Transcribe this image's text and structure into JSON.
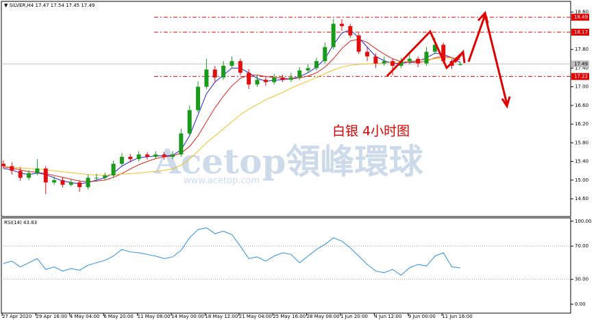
{
  "chart_data": [
    {
      "type": "candlestick",
      "title": "SILVER,H4",
      "x": [
        "27 Apr 2020",
        null,
        null,
        null,
        "29 Apr 16:00",
        null,
        null,
        null,
        "4 May 04:00",
        null,
        null,
        null,
        "6 May 20:00",
        null,
        null,
        null,
        "11 May 08:00",
        null,
        null,
        null,
        "14 May 00:00",
        null,
        null,
        null,
        "18 May 12:00",
        null,
        null,
        null,
        "21 May 04:00",
        null,
        null,
        null,
        "25 May 16:00",
        null,
        null,
        null,
        "28 May 08:00",
        null,
        null,
        null,
        "1 Jun 20:00",
        null,
        null,
        null,
        "4 Jun 12:00",
        null,
        null,
        null,
        "9 Jun 00:00",
        null,
        null,
        null,
        "11 Jun 16:00",
        null,
        null
      ],
      "open": [
        15.35,
        15.3,
        15.2,
        15.05,
        15.15,
        15.25,
        14.95,
        15.0,
        14.9,
        14.95,
        14.85,
        15.05,
        15.05,
        15.1,
        15.35,
        15.5,
        15.45,
        15.55,
        15.5,
        15.55,
        15.5,
        15.55,
        16.0,
        16.5,
        17.0,
        17.37,
        17.2,
        17.45,
        17.55,
        17.3,
        17.05,
        17.15,
        17.1,
        17.2,
        17.15,
        17.2,
        17.35,
        17.4,
        17.55,
        17.85,
        18.35,
        18.3,
        18.1,
        17.75,
        17.65,
        17.5,
        17.55,
        17.45,
        17.55,
        17.6,
        17.5,
        17.75,
        17.9,
        17.55,
        17.47
      ],
      "high": [
        15.42,
        15.38,
        15.28,
        15.22,
        15.45,
        15.3,
        15.08,
        15.06,
        15.02,
        15.0,
        15.12,
        15.14,
        15.16,
        15.42,
        15.58,
        15.56,
        15.62,
        15.6,
        15.62,
        15.6,
        15.62,
        16.1,
        16.6,
        17.12,
        17.6,
        17.45,
        17.55,
        17.65,
        17.6,
        17.38,
        17.25,
        17.22,
        17.28,
        17.26,
        17.3,
        17.42,
        17.48,
        17.62,
        17.95,
        18.45,
        18.45,
        18.35,
        18.15,
        17.85,
        17.72,
        17.65,
        17.6,
        17.62,
        17.72,
        17.65,
        17.85,
        18.05,
        17.95,
        17.6,
        17.54
      ],
      "low": [
        15.25,
        15.12,
        14.98,
        15.0,
        15.1,
        14.7,
        14.9,
        14.84,
        14.86,
        14.75,
        14.8,
        14.98,
        15.0,
        15.05,
        15.3,
        15.38,
        15.4,
        15.44,
        15.45,
        15.44,
        15.45,
        15.5,
        15.95,
        16.45,
        16.95,
        17.1,
        17.15,
        17.4,
        17.25,
        16.95,
        17.0,
        17.02,
        17.05,
        17.1,
        17.1,
        17.15,
        17.3,
        17.35,
        17.5,
        17.8,
        18.2,
        18.05,
        17.7,
        17.55,
        17.4,
        17.45,
        17.25,
        17.4,
        17.48,
        17.42,
        17.45,
        17.7,
        17.5,
        17.38,
        17.45
      ],
      "close": [
        15.3,
        15.2,
        15.05,
        15.15,
        15.25,
        14.95,
        15.0,
        14.9,
        14.95,
        14.85,
        15.05,
        15.05,
        15.1,
        15.35,
        15.5,
        15.45,
        15.55,
        15.5,
        15.55,
        15.5,
        15.55,
        16.0,
        16.5,
        17.0,
        17.37,
        17.2,
        17.45,
        17.55,
        17.3,
        17.05,
        17.15,
        17.1,
        17.2,
        17.15,
        17.2,
        17.35,
        17.4,
        17.55,
        17.85,
        18.35,
        18.3,
        18.1,
        17.75,
        17.65,
        17.5,
        17.55,
        17.45,
        17.55,
        17.6,
        17.5,
        17.75,
        17.9,
        17.55,
        17.45,
        17.49
      ],
      "up_color": "#1a9a1a",
      "down_color": "#e01010",
      "series": [
        {
          "color": "#2020e0",
          "values": [
            15.25,
            15.22,
            15.15,
            15.12,
            15.15,
            15.12,
            15.05,
            14.98,
            14.95,
            14.92,
            14.95,
            15.0,
            15.05,
            15.15,
            15.3,
            15.4,
            15.48,
            15.5,
            15.52,
            15.52,
            15.53,
            15.65,
            15.95,
            16.4,
            16.85,
            17.1,
            17.25,
            17.4,
            17.4,
            17.3,
            17.18,
            17.12,
            17.14,
            17.15,
            17.17,
            17.22,
            17.3,
            17.42,
            17.6,
            17.9,
            18.15,
            18.22,
            18.05,
            17.85,
            17.65,
            17.56,
            17.5,
            17.5,
            17.53,
            17.55,
            17.62,
            17.72,
            17.7,
            17.62,
            17.52
          ]
        },
        {
          "color": "#e02020",
          "values": [
            15.28,
            15.26,
            15.22,
            15.18,
            15.17,
            15.14,
            15.1,
            15.06,
            15.02,
            14.98,
            14.97,
            14.98,
            15.0,
            15.06,
            15.14,
            15.24,
            15.33,
            15.4,
            15.46,
            15.5,
            15.52,
            15.58,
            15.72,
            15.95,
            16.25,
            16.55,
            16.8,
            17.02,
            17.18,
            17.25,
            17.25,
            17.22,
            17.2,
            17.18,
            17.17,
            17.19,
            17.23,
            17.3,
            17.42,
            17.6,
            17.82,
            17.98,
            18.02,
            17.95,
            17.82,
            17.7,
            17.6,
            17.54,
            17.52,
            17.52,
            17.55,
            17.62,
            17.65,
            17.63,
            17.58
          ]
        },
        {
          "color": "#f0c020",
          "values": [
            15.3,
            15.28,
            15.26,
            15.25,
            15.24,
            15.22,
            15.2,
            15.18,
            15.16,
            15.14,
            15.12,
            15.11,
            15.11,
            15.12,
            15.13,
            15.14,
            15.15,
            15.17,
            15.19,
            15.21,
            15.24,
            15.32,
            15.45,
            15.62,
            15.8,
            15.95,
            16.1,
            16.25,
            16.4,
            16.52,
            16.62,
            16.72,
            16.8,
            16.88,
            16.97,
            17.05,
            17.12,
            17.2,
            17.28,
            17.36,
            17.42,
            17.46,
            17.48,
            17.49,
            17.5,
            17.51,
            17.52,
            17.53,
            17.55,
            17.56,
            17.58,
            17.6,
            17.61,
            17.62,
            17.62
          ]
        }
      ],
      "levels": [
        18.49,
        18.17,
        17.22
      ],
      "level_color": "#e00000",
      "last_price": 17.49,
      "ylim": [
        14.22,
        18.83
      ],
      "yticks": [
        {
          "value": 18.6,
          "label": "18.60"
        },
        {
          "value": 17.8,
          "label": "17.80"
        },
        {
          "value": 17.4,
          "label": "17.40"
        },
        {
          "value": 17.0,
          "label": "17.00"
        },
        {
          "value": 16.6,
          "label": "16.60"
        },
        {
          "value": 16.2,
          "label": "16.20"
        },
        {
          "value": 15.8,
          "label": "15.80"
        },
        {
          "value": 15.4,
          "label": "15.40"
        },
        {
          "value": 15.0,
          "label": "15.00"
        },
        {
          "value": 14.6,
          "label": "14.60"
        }
      ],
      "annotation": "白银 4小时图",
      "watermark": "Acetop領峰環球",
      "watermark_url": "www.acetop.com"
    },
    {
      "type": "line",
      "title": "RSI(14)",
      "color": "#2a8ee0",
      "values": [
        49,
        52,
        45,
        50,
        55,
        42,
        45,
        40,
        43,
        41,
        47,
        50,
        53,
        58,
        66,
        63,
        62,
        60,
        58,
        55,
        57,
        65,
        80,
        90,
        92,
        85,
        88,
        84,
        70,
        55,
        57,
        52,
        58,
        62,
        60,
        50,
        58,
        66,
        72,
        80,
        76,
        68,
        58,
        48,
        40,
        38,
        42,
        35,
        44,
        48,
        46,
        58,
        62,
        45,
        43.83
      ],
      "ylim": [
        -10.7,
        104
      ],
      "yticks": [
        {
          "value": 100,
          "label": "100.00"
        },
        {
          "value": 70,
          "label": "70.00"
        },
        {
          "value": 30,
          "label": "30.00"
        },
        {
          "value": 0,
          "label": "0.00"
        }
      ],
      "levels": [
        70,
        30
      ]
    }
  ]
}
